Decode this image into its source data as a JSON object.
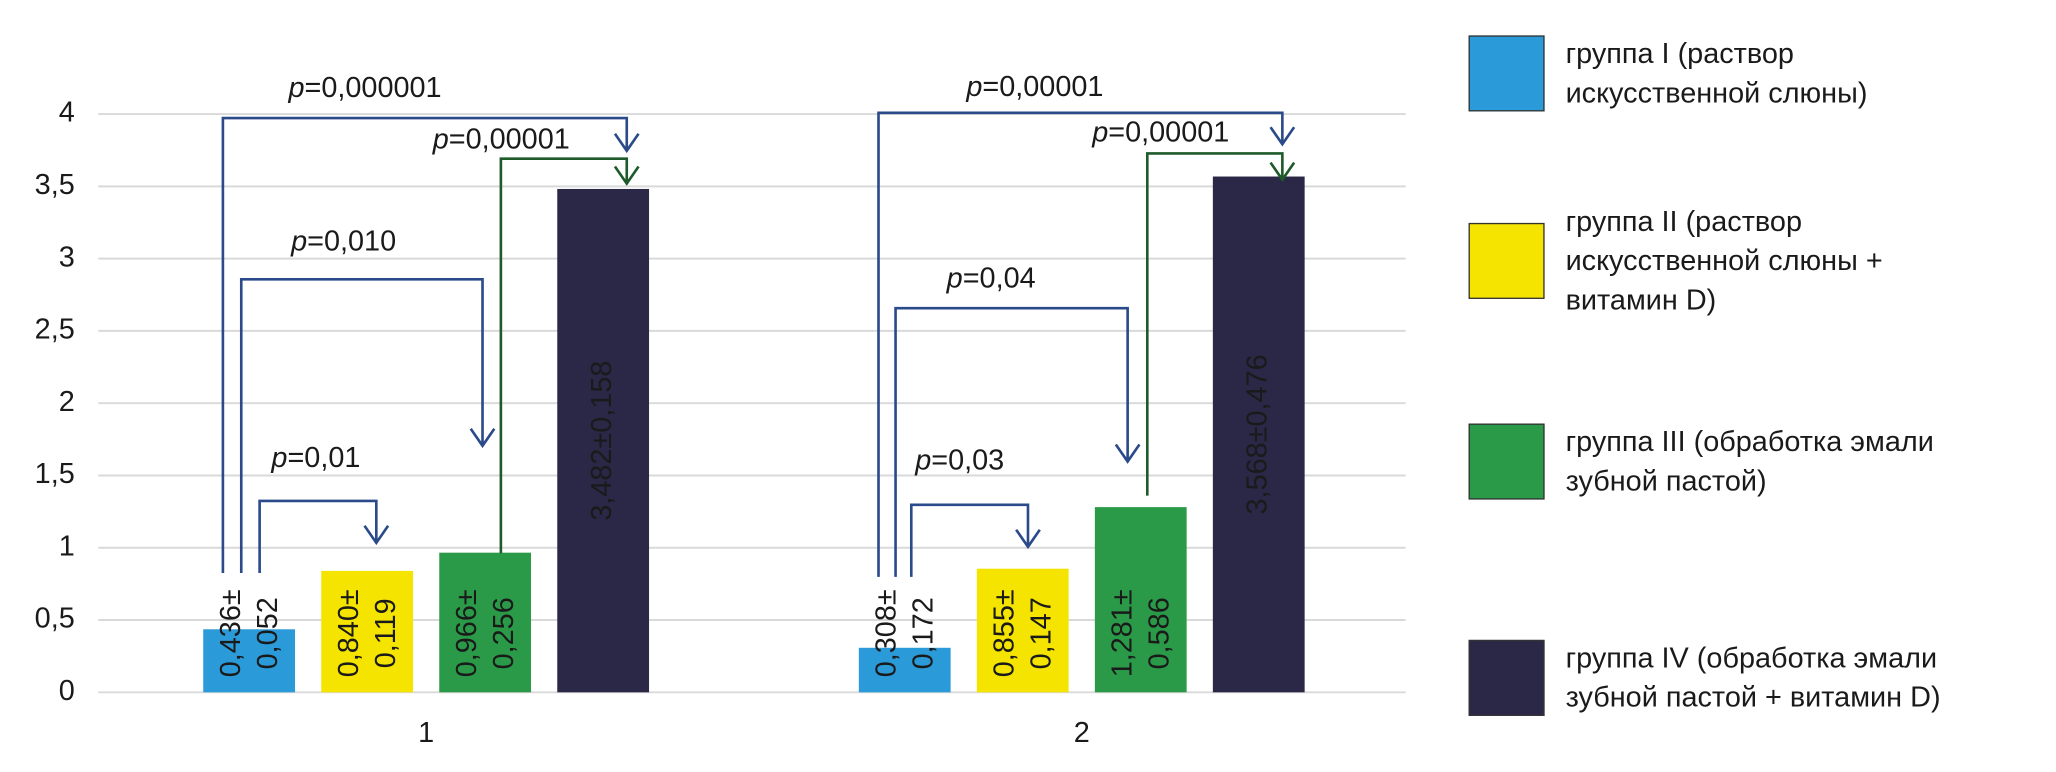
{
  "chart_data": {
    "type": "bar",
    "categories": [
      "1",
      "2"
    ],
    "series": [
      {
        "name": "группа I (раствор искусственной слюны)",
        "color": "#2b9ad8",
        "values": [
          0.436,
          0.308
        ],
        "value_labels": [
          "0,436±0,052",
          "0,308±0,172"
        ]
      },
      {
        "name": "группа II (раствор искусственной слюны + витамин D)",
        "color": "#f5e400",
        "values": [
          0.84,
          0.855
        ],
        "value_labels": [
          "0,840±0,119",
          "0,855±0,147"
        ]
      },
      {
        "name": "группа III (обработка эмали зубной пастой)",
        "color": "#2a9a48",
        "values": [
          0.966,
          1.281
        ],
        "value_labels": [
          "0,966±0,256",
          "1,281±0,586"
        ]
      },
      {
        "name": "группа IV (обработка эмали зубной пастой + витамин D)",
        "color": "#2b2746",
        "values": [
          3.482,
          3.568
        ],
        "value_labels": [
          "3,482±0,158",
          "3,568±0,476"
        ]
      }
    ],
    "ylim": [
      0,
      4
    ],
    "yticks": [
      0,
      {
        "value": 0.5,
        "label": "0,5"
      },
      1,
      {
        "value": 1.5,
        "label": "1,5"
      },
      2,
      {
        "value": 2.5,
        "label": "2,5"
      },
      3,
      {
        "value": 3.5,
        "label": "3,5"
      },
      4
    ],
    "grid": true,
    "annotations": [
      "p=0,000001",
      "p=0,00001",
      "p=0,010",
      "p=0,01",
      "p=0,00001",
      "p=0,00001",
      "p=0,04",
      "p=0,03"
    ]
  }
}
